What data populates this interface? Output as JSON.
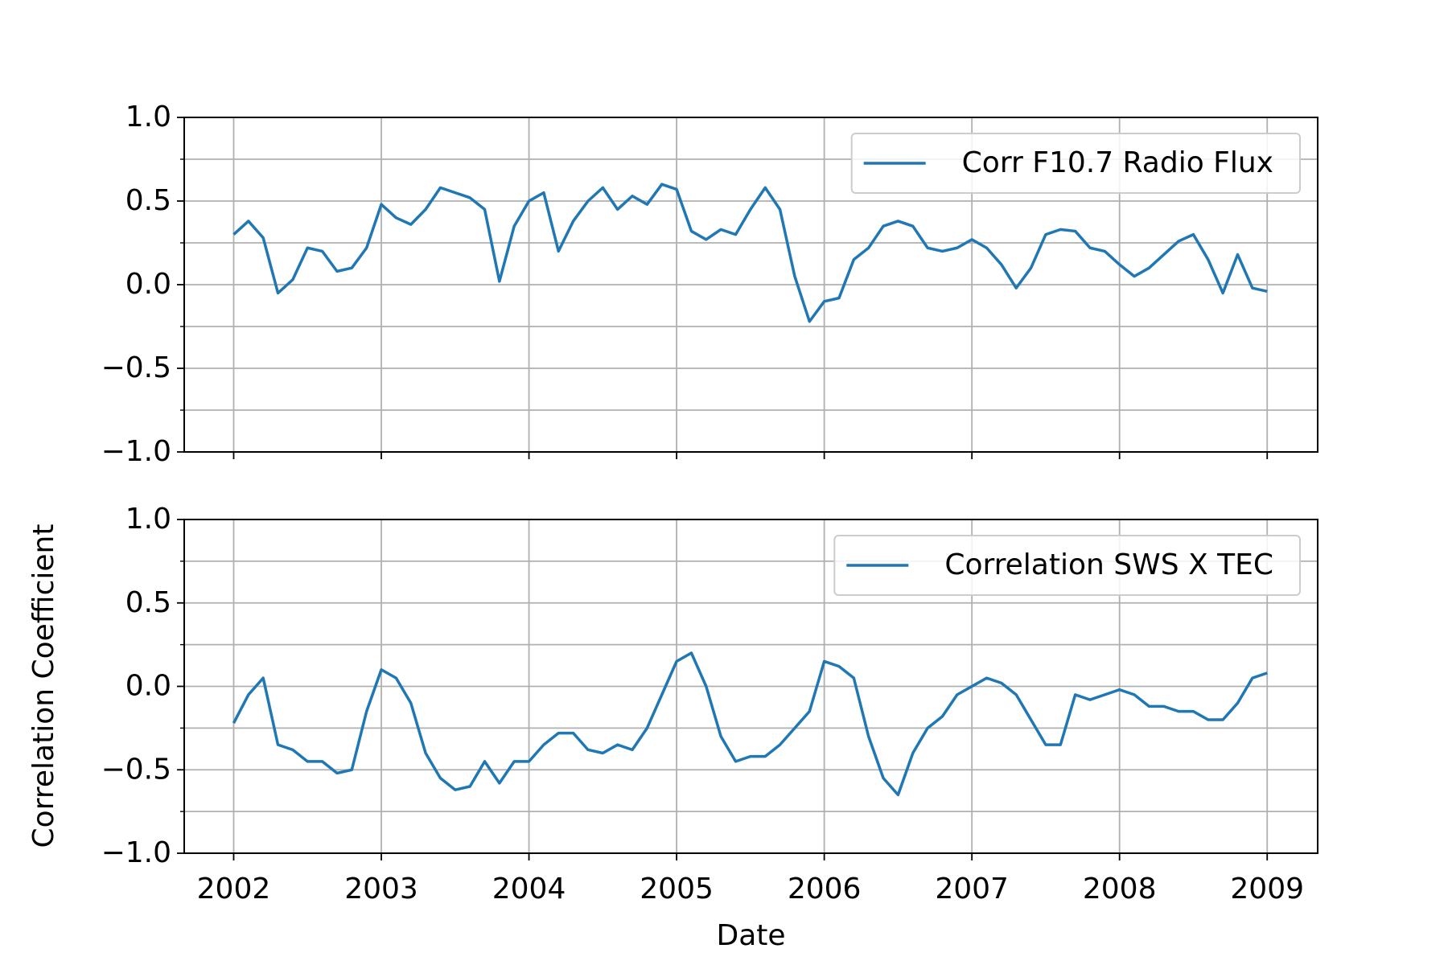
{
  "chart_data": [
    {
      "type": "line",
      "x": [
        2002.0,
        2002.1,
        2002.2,
        2002.3,
        2002.4,
        2002.5,
        2002.6,
        2002.7,
        2002.8,
        2002.9,
        2003.0,
        2003.1,
        2003.2,
        2003.3,
        2003.4,
        2003.5,
        2003.6,
        2003.7,
        2003.8,
        2003.9,
        2004.0,
        2004.1,
        2004.2,
        2004.3,
        2004.4,
        2004.5,
        2004.6,
        2004.7,
        2004.8,
        2004.9,
        2005.0,
        2005.1,
        2005.2,
        2005.3,
        2005.4,
        2005.5,
        2005.6,
        2005.7,
        2005.8,
        2005.9,
        2006.0,
        2006.1,
        2006.2,
        2006.3,
        2006.4,
        2006.5,
        2006.6,
        2006.7,
        2006.8,
        2006.9,
        2007.0,
        2007.1,
        2007.2,
        2007.3,
        2007.4,
        2007.5,
        2007.6,
        2007.7,
        2007.8,
        2007.9,
        2008.0,
        2008.1,
        2008.2,
        2008.3,
        2008.4,
        2008.5,
        2008.6,
        2008.7,
        2008.8,
        2008.9,
        2009.0
      ],
      "series": [
        {
          "name": "Corr F10.7 Radio Flux",
          "color": "#1f77b4",
          "values": [
            0.3,
            0.38,
            0.28,
            -0.05,
            0.03,
            0.22,
            0.2,
            0.08,
            0.1,
            0.22,
            0.48,
            0.4,
            0.36,
            0.45,
            0.58,
            0.55,
            0.52,
            0.45,
            0.02,
            0.35,
            0.5,
            0.55,
            0.2,
            0.38,
            0.5,
            0.58,
            0.45,
            0.53,
            0.48,
            0.6,
            0.57,
            0.32,
            0.27,
            0.33,
            0.3,
            0.45,
            0.58,
            0.45,
            0.05,
            -0.22,
            -0.1,
            -0.08,
            0.15,
            0.22,
            0.35,
            0.38,
            0.35,
            0.22,
            0.2,
            0.22,
            0.27,
            0.22,
            0.12,
            -0.02,
            0.1,
            0.3,
            0.33,
            0.32,
            0.22,
            0.2,
            0.12,
            0.05,
            0.1,
            0.18,
            0.26,
            0.3,
            0.15,
            -0.05,
            0.18,
            -0.02,
            -0.04
          ]
        }
      ],
      "xlim": [
        2001.665,
        2009.342
      ],
      "xticks": [
        2002,
        2003,
        2004,
        2005,
        2006,
        2007,
        2008,
        2009
      ],
      "xtick_labels_shown": false,
      "ylim": [
        -1,
        1
      ],
      "yticks": [
        {
          "value": -1,
          "label": "−1.0"
        },
        {
          "value": -0.5,
          "label": "−0.5"
        },
        {
          "value": 0,
          "label": "0.0"
        },
        {
          "value": 0.5,
          "label": "0.5"
        },
        {
          "value": 1,
          "label": "1.0"
        }
      ],
      "yminorticks": [
        -0.75,
        -0.25,
        0.25,
        0.75
      ],
      "grid": true,
      "legend": "upper right"
    },
    {
      "type": "line",
      "x": [
        2002.0,
        2002.1,
        2002.2,
        2002.3,
        2002.4,
        2002.5,
        2002.6,
        2002.7,
        2002.8,
        2002.9,
        2003.0,
        2003.1,
        2003.2,
        2003.3,
        2003.4,
        2003.5,
        2003.6,
        2003.7,
        2003.8,
        2003.9,
        2004.0,
        2004.1,
        2004.2,
        2004.3,
        2004.4,
        2004.5,
        2004.6,
        2004.7,
        2004.8,
        2004.9,
        2005.0,
        2005.1,
        2005.2,
        2005.3,
        2005.4,
        2005.5,
        2005.6,
        2005.7,
        2005.8,
        2005.9,
        2006.0,
        2006.1,
        2006.2,
        2006.3,
        2006.4,
        2006.5,
        2006.6,
        2006.7,
        2006.8,
        2006.9,
        2007.0,
        2007.1,
        2007.2,
        2007.3,
        2007.4,
        2007.5,
        2007.6,
        2007.7,
        2007.8,
        2007.9,
        2008.0,
        2008.1,
        2008.2,
        2008.3,
        2008.4,
        2008.5,
        2008.6,
        2008.7,
        2008.8,
        2008.9,
        2009.0
      ],
      "series": [
        {
          "name": "Correlation SWS X TEC",
          "color": "#1f77b4",
          "values": [
            -0.22,
            -0.05,
            0.05,
            -0.35,
            -0.38,
            -0.45,
            -0.45,
            -0.52,
            -0.5,
            -0.15,
            0.1,
            0.05,
            -0.1,
            -0.4,
            -0.55,
            -0.62,
            -0.6,
            -0.45,
            -0.58,
            -0.45,
            -0.45,
            -0.35,
            -0.28,
            -0.28,
            -0.38,
            -0.4,
            -0.35,
            -0.38,
            -0.25,
            -0.05,
            0.15,
            0.2,
            0.0,
            -0.3,
            -0.45,
            -0.42,
            -0.42,
            -0.35,
            -0.25,
            -0.15,
            0.15,
            0.12,
            0.05,
            -0.3,
            -0.55,
            -0.65,
            -0.4,
            -0.25,
            -0.18,
            -0.05,
            0.0,
            0.05,
            0.02,
            -0.05,
            -0.2,
            -0.35,
            -0.35,
            -0.05,
            -0.08,
            -0.05,
            -0.02,
            -0.05,
            -0.12,
            -0.12,
            -0.15,
            -0.15,
            -0.2,
            -0.2,
            -0.1,
            0.05,
            0.08
          ]
        }
      ],
      "xlim": [
        2001.665,
        2009.342
      ],
      "xticks": [
        2002,
        2003,
        2004,
        2005,
        2006,
        2007,
        2008,
        2009
      ],
      "xtick_labels_shown": true,
      "ylim": [
        -1,
        1
      ],
      "yticks": [
        {
          "value": -1,
          "label": "−1.0"
        },
        {
          "value": -0.5,
          "label": "−0.5"
        },
        {
          "value": 0,
          "label": "0.0"
        },
        {
          "value": 0.5,
          "label": "0.5"
        },
        {
          "value": 1,
          "label": "1.0"
        }
      ],
      "yminorticks": [
        -0.75,
        -0.25,
        0.25,
        0.75
      ],
      "grid": true,
      "legend": "upper right",
      "xlabel": "Date",
      "ylabel": "Correlation Coefficient"
    }
  ]
}
